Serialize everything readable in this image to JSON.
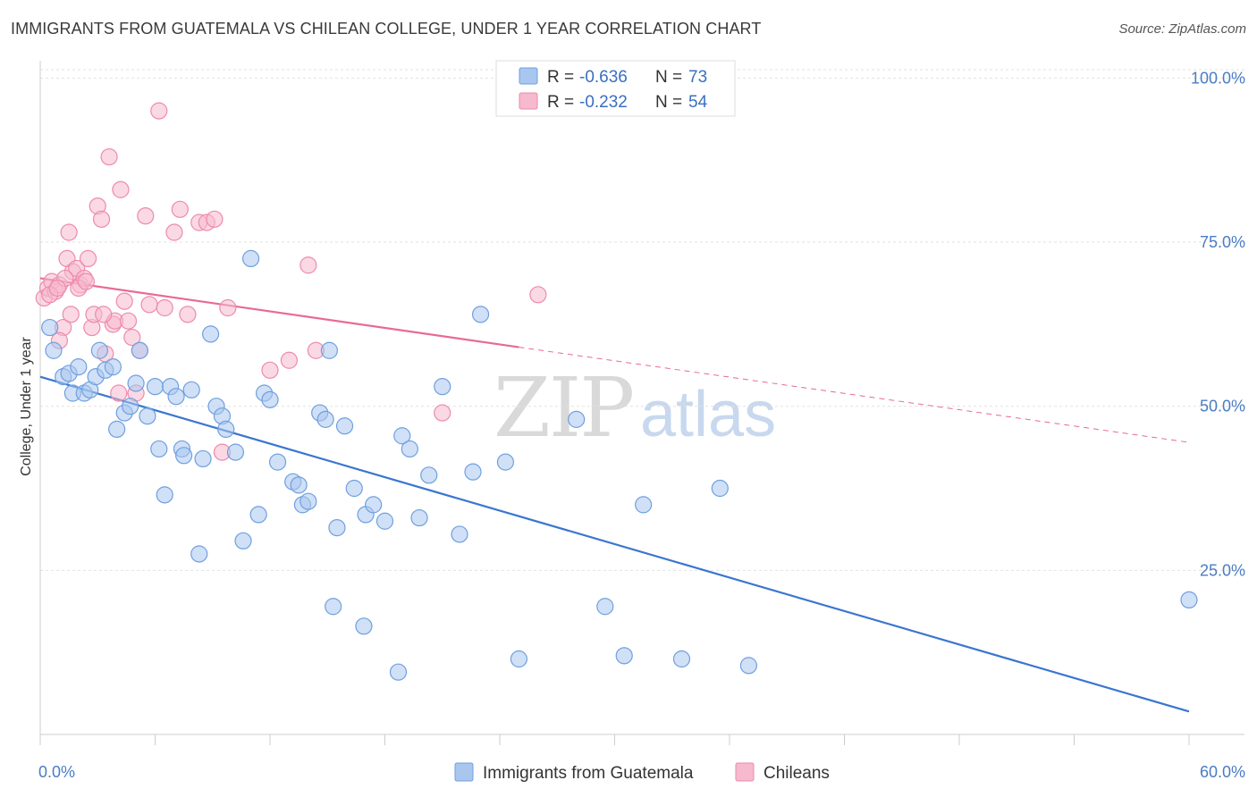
{
  "title": "IMMIGRANTS FROM GUATEMALA VS CHILEAN COLLEGE, UNDER 1 YEAR CORRELATION CHART",
  "source": "Source: ZipAtlas.com",
  "watermark": {
    "zip": "ZIP",
    "atlas": "atlas"
  },
  "legend": {
    "rows": [
      {
        "r_label": "R = ",
        "r_value": "-0.636",
        "n_label": "N = ",
        "n_value": "73",
        "color": "#a9c6ef"
      },
      {
        "r_label": "R = ",
        "r_value": "-0.232",
        "n_label": "N = ",
        "n_value": "54",
        "color": "#f6b9cd"
      }
    ]
  },
  "bottom_legend": [
    {
      "label": "Immigrants from Guatemala",
      "color": "#a9c6ef"
    },
    {
      "label": "Chileans",
      "color": "#f6b9cd"
    }
  ],
  "chart_data": {
    "type": "scatter",
    "title": "IMMIGRANTS FROM GUATEMALA VS CHILEAN COLLEGE, UNDER 1 YEAR CORRELATION CHART",
    "xlabel": "",
    "ylabel": "College, Under 1 year",
    "xlim": [
      0,
      60
    ],
    "ylim": [
      0,
      104
    ],
    "x_tick_labels": [
      "0.0%",
      "60.0%"
    ],
    "y_ticks": [
      25,
      50,
      75,
      100
    ],
    "y_tick_labels": [
      "25.0%",
      "50.0%",
      "75.0%",
      "100.0%"
    ],
    "grid": "horizontal dashed",
    "legend_position": "top-center",
    "series": [
      {
        "name": "Immigrants from Guatemala",
        "color": "#6f9fe0",
        "fill": "#a9c6ef",
        "trend": {
          "x": [
            0,
            60
          ],
          "y": [
            54.5,
            3.5
          ],
          "style": "solid"
        },
        "points": [
          [
            0.5,
            62
          ],
          [
            0.7,
            58.5
          ],
          [
            1.2,
            54.5
          ],
          [
            1.5,
            55
          ],
          [
            1.7,
            52
          ],
          [
            2.0,
            56
          ],
          [
            2.3,
            52
          ],
          [
            2.6,
            52.5
          ],
          [
            2.9,
            54.5
          ],
          [
            3.1,
            58.5
          ],
          [
            3.4,
            55.5
          ],
          [
            3.8,
            56
          ],
          [
            4.0,
            46.5
          ],
          [
            4.4,
            49
          ],
          [
            4.7,
            50
          ],
          [
            5.0,
            53.5
          ],
          [
            5.2,
            58.5
          ],
          [
            5.6,
            48.5
          ],
          [
            6.0,
            53
          ],
          [
            6.2,
            43.5
          ],
          [
            6.5,
            36.5
          ],
          [
            6.8,
            53
          ],
          [
            7.1,
            51.5
          ],
          [
            7.4,
            43.5
          ],
          [
            7.5,
            42.5
          ],
          [
            7.9,
            52.5
          ],
          [
            8.3,
            27.5
          ],
          [
            8.5,
            42
          ],
          [
            8.9,
            61
          ],
          [
            9.2,
            50
          ],
          [
            9.5,
            48.5
          ],
          [
            9.7,
            46.5
          ],
          [
            10.2,
            43
          ],
          [
            10.6,
            29.5
          ],
          [
            11.0,
            72.5
          ],
          [
            11.4,
            33.5
          ],
          [
            11.7,
            52
          ],
          [
            12.0,
            51
          ],
          [
            12.4,
            41.5
          ],
          [
            13.2,
            38.5
          ],
          [
            13.5,
            38
          ],
          [
            13.7,
            35
          ],
          [
            14.0,
            35.5
          ],
          [
            14.6,
            49
          ],
          [
            14.9,
            48
          ],
          [
            15.1,
            58.5
          ],
          [
            15.3,
            19.5
          ],
          [
            15.5,
            31.5
          ],
          [
            15.9,
            47
          ],
          [
            16.4,
            37.5
          ],
          [
            16.9,
            16.5
          ],
          [
            17.0,
            33.5
          ],
          [
            17.4,
            35
          ],
          [
            18.0,
            32.5
          ],
          [
            18.7,
            9.5
          ],
          [
            18.9,
            45.5
          ],
          [
            19.3,
            43.5
          ],
          [
            19.8,
            33
          ],
          [
            20.3,
            39.5
          ],
          [
            21.0,
            53
          ],
          [
            21.9,
            30.5
          ],
          [
            22.6,
            40
          ],
          [
            23.0,
            64
          ],
          [
            24.3,
            41.5
          ],
          [
            25.0,
            11.5
          ],
          [
            28.0,
            48
          ],
          [
            29.5,
            19.5
          ],
          [
            30.5,
            12
          ],
          [
            31.5,
            35
          ],
          [
            33.5,
            11.5
          ],
          [
            35.5,
            37.5
          ],
          [
            37.0,
            10.5
          ],
          [
            60.0,
            20.5
          ]
        ]
      },
      {
        "name": "Chileans",
        "color": "#ee8aaa",
        "fill": "#f6b9cd",
        "trend": {
          "x": [
            0,
            25
          ],
          "y": [
            69.5,
            59
          ],
          "style": "solid",
          "extended": {
            "x": [
              25,
              60
            ],
            "y": [
              59,
              44.5
            ],
            "style": "dashed"
          }
        },
        "points": [
          [
            0.2,
            66.5
          ],
          [
            0.4,
            68
          ],
          [
            0.6,
            69
          ],
          [
            0.8,
            67.5
          ],
          [
            1.0,
            68.5
          ],
          [
            1.2,
            62
          ],
          [
            1.4,
            72.5
          ],
          [
            1.5,
            76.5
          ],
          [
            1.7,
            70.5
          ],
          [
            1.9,
            71
          ],
          [
            2.1,
            68.5
          ],
          [
            2.3,
            69.5
          ],
          [
            2.5,
            72.5
          ],
          [
            2.7,
            62
          ],
          [
            2.8,
            64
          ],
          [
            3.0,
            80.5
          ],
          [
            3.2,
            78.5
          ],
          [
            3.4,
            58
          ],
          [
            3.6,
            88
          ],
          [
            3.8,
            62.5
          ],
          [
            3.9,
            63
          ],
          [
            4.2,
            83
          ],
          [
            4.4,
            66
          ],
          [
            4.6,
            63
          ],
          [
            4.8,
            60.5
          ],
          [
            5.0,
            52
          ],
          [
            5.2,
            58.5
          ],
          [
            5.5,
            79
          ],
          [
            5.7,
            65.5
          ],
          [
            6.2,
            95
          ],
          [
            6.5,
            65
          ],
          [
            7.0,
            76.5
          ],
          [
            7.3,
            80
          ],
          [
            7.7,
            64
          ],
          [
            8.3,
            78
          ],
          [
            8.7,
            78
          ],
          [
            9.1,
            78.5
          ],
          [
            9.5,
            43
          ],
          [
            9.8,
            65
          ],
          [
            12.0,
            55.5
          ],
          [
            13.0,
            57
          ],
          [
            14.0,
            71.5
          ],
          [
            14.4,
            58.5
          ],
          [
            1.0,
            60
          ],
          [
            2.0,
            68
          ],
          [
            0.5,
            67
          ],
          [
            1.6,
            64
          ],
          [
            3.3,
            64
          ],
          [
            4.1,
            52
          ],
          [
            2.4,
            69
          ],
          [
            1.3,
            69.5
          ],
          [
            26.0,
            67
          ],
          [
            21.0,
            49
          ],
          [
            0.9,
            68
          ]
        ]
      }
    ]
  }
}
